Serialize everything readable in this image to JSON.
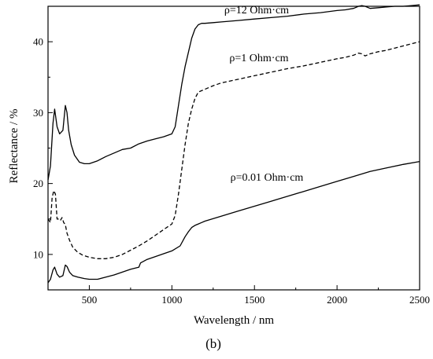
{
  "chart_data": {
    "type": "line",
    "panel_label": "(b)",
    "xlabel": "Wavelength / nm",
    "ylabel": "Reflectance / %",
    "xlim": [
      250,
      2500
    ],
    "ylim": [
      5,
      45
    ],
    "x_ticks": [
      500,
      1000,
      1500,
      2000,
      2500
    ],
    "y_ticks": [
      10,
      20,
      30,
      40
    ],
    "grid": false,
    "legend": "none",
    "annotations": [
      {
        "text": "ρ=12 Ohm·cm",
        "x": 1500,
        "y": 45.0
      },
      {
        "text": "ρ=1 Ohm·cm",
        "x": 1450,
        "y": 39.5
      },
      {
        "text": "ρ=0.01 Ohm·cm",
        "x": 1500,
        "y": 21.3
      }
    ],
    "series": [
      {
        "label_ref": "ρ=12 Ohm·cm",
        "style": "solid",
        "x": [
          250,
          265,
          280,
          290,
          305,
          320,
          340,
          355,
          365,
          375,
          390,
          410,
          440,
          470,
          500,
          550,
          600,
          650,
          700,
          750,
          800,
          850,
          900,
          950,
          1000,
          1020,
          1040,
          1060,
          1080,
          1100,
          1120,
          1140,
          1160,
          1180,
          1200,
          1250,
          1300,
          1400,
          1500,
          1600,
          1700,
          1800,
          1900,
          2000,
          2050,
          2100,
          2130,
          2150,
          2170,
          2200,
          2250,
          2300,
          2350,
          2400,
          2450,
          2500
        ],
        "y": [
          20.5,
          22.5,
          28.5,
          30.5,
          28.0,
          27.0,
          27.5,
          31.0,
          30.0,
          27.5,
          25.5,
          24.0,
          23.0,
          22.8,
          22.8,
          23.2,
          23.8,
          24.3,
          24.8,
          25.0,
          25.6,
          26.0,
          26.3,
          26.6,
          27.0,
          28.0,
          31.0,
          34.0,
          36.5,
          38.5,
          40.5,
          41.8,
          42.4,
          42.6,
          42.6,
          42.7,
          42.8,
          43.0,
          43.2,
          43.4,
          43.6,
          43.9,
          44.1,
          44.4,
          44.5,
          44.7,
          45.0,
          45.1,
          45.0,
          44.7,
          44.8,
          44.9,
          45.0,
          45.0,
          45.1,
          45.2
        ]
      },
      {
        "label_ref": "ρ=1 Ohm·cm",
        "style": "dashed",
        "x": [
          250,
          265,
          275,
          285,
          295,
          305,
          315,
          325,
          335,
          345,
          355,
          365,
          380,
          400,
          430,
          460,
          500,
          550,
          600,
          650,
          700,
          750,
          800,
          850,
          900,
          950,
          1000,
          1020,
          1040,
          1060,
          1080,
          1100,
          1120,
          1140,
          1160,
          1180,
          1200,
          1250,
          1300,
          1400,
          1500,
          1600,
          1700,
          1800,
          1900,
          2000,
          2050,
          2100,
          2130,
          2150,
          2170,
          2200,
          2250,
          2300,
          2350,
          2400,
          2450,
          2500
        ],
        "y": [
          15.0,
          14.5,
          18.0,
          19.0,
          18.5,
          15.0,
          15.0,
          14.8,
          15.2,
          14.5,
          14.2,
          13.0,
          12.0,
          11.0,
          10.3,
          9.9,
          9.6,
          9.4,
          9.4,
          9.6,
          10.0,
          10.6,
          11.2,
          11.9,
          12.7,
          13.5,
          14.3,
          15.5,
          18.5,
          22.0,
          25.5,
          28.5,
          30.5,
          32.0,
          32.9,
          33.1,
          33.3,
          33.8,
          34.2,
          34.7,
          35.2,
          35.7,
          36.2,
          36.6,
          37.1,
          37.6,
          37.8,
          38.1,
          38.4,
          38.3,
          38.0,
          38.3,
          38.6,
          38.8,
          39.1,
          39.4,
          39.7,
          40.0
        ]
      },
      {
        "label_ref": "ρ=0.01 Ohm·cm",
        "style": "solid",
        "x": [
          250,
          265,
          280,
          290,
          305,
          320,
          340,
          355,
          365,
          380,
          400,
          430,
          470,
          500,
          550,
          600,
          650,
          700,
          750,
          800,
          810,
          850,
          900,
          950,
          1000,
          1050,
          1080,
          1100,
          1120,
          1140,
          1160,
          1180,
          1200,
          1300,
          1400,
          1500,
          1600,
          1700,
          1800,
          1900,
          2000,
          2100,
          2200,
          2300,
          2400,
          2500
        ],
        "y": [
          6.0,
          6.5,
          7.8,
          8.2,
          7.2,
          6.8,
          7.0,
          8.5,
          8.3,
          7.5,
          7.0,
          6.8,
          6.6,
          6.5,
          6.5,
          6.8,
          7.1,
          7.5,
          7.9,
          8.2,
          8.8,
          9.3,
          9.7,
          10.1,
          10.5,
          11.2,
          12.5,
          13.2,
          13.8,
          14.1,
          14.3,
          14.5,
          14.7,
          15.4,
          16.1,
          16.8,
          17.5,
          18.2,
          18.9,
          19.6,
          20.3,
          21.0,
          21.7,
          22.2,
          22.7,
          23.1
        ]
      }
    ]
  }
}
